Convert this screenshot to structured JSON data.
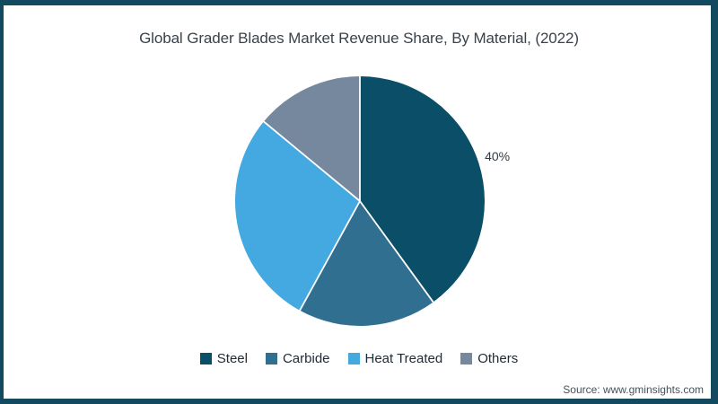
{
  "frame": {
    "border_color": "#134a5f",
    "background_color": "#ffffff"
  },
  "chart_data": {
    "type": "pie",
    "title": "Global Grader Blades Market Revenue Share, By Material, (2022)",
    "start_angle_deg": 0,
    "direction": "clockwise",
    "legend_position": "bottom",
    "slice_separator_color": "#ffffff",
    "series": [
      {
        "name": "Steel",
        "value": 40,
        "color": "#0b4e67",
        "label": "40%"
      },
      {
        "name": "Carbide",
        "value": 18,
        "color": "#316f90",
        "label": ""
      },
      {
        "name": "Heat Treated",
        "value": 28,
        "color": "#44a9e0",
        "label": ""
      },
      {
        "name": "Others",
        "value": 14,
        "color": "#76889d",
        "label": ""
      }
    ]
  },
  "source": {
    "text": "Source: www.gminsights.com"
  }
}
